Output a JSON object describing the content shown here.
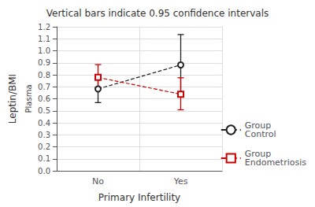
{
  "chart_data": {
    "type": "line",
    "title": "Vertical bars indicate 0.95 confidence intervals",
    "xlabel": "Primary Infertility",
    "ylabel": "Leptin/BMI",
    "annotations": [
      "Plasma"
    ],
    "categories": [
      "No",
      "Yes"
    ],
    "series": [
      {
        "name": "Group\nControl",
        "color": "#222222",
        "marker": "circle",
        "line_style": "dashed",
        "values": [
          0.682,
          0.882
        ],
        "lower": [
          0.568,
          0.643
        ],
        "upper": [
          0.795,
          1.135
        ]
      },
      {
        "name": "Group\nEndometriosis",
        "color": "#cc0000",
        "marker": "square",
        "line_style": "dashed",
        "values": [
          0.778,
          0.638
        ],
        "lower": [
          0.695,
          0.508
        ],
        "upper": [
          0.885,
          0.775
        ]
      }
    ],
    "ylim": [
      0.0,
      1.2
    ],
    "yticks": [
      {
        "value": 0,
        "label": "0.0"
      },
      0.1,
      0.2,
      0.3,
      0.4,
      0.5,
      0.6,
      0.7,
      0.8,
      0.9,
      {
        "value": 1,
        "label": "1.0"
      },
      1.1,
      1.2
    ],
    "grid": true,
    "legend": "lower right"
  }
}
